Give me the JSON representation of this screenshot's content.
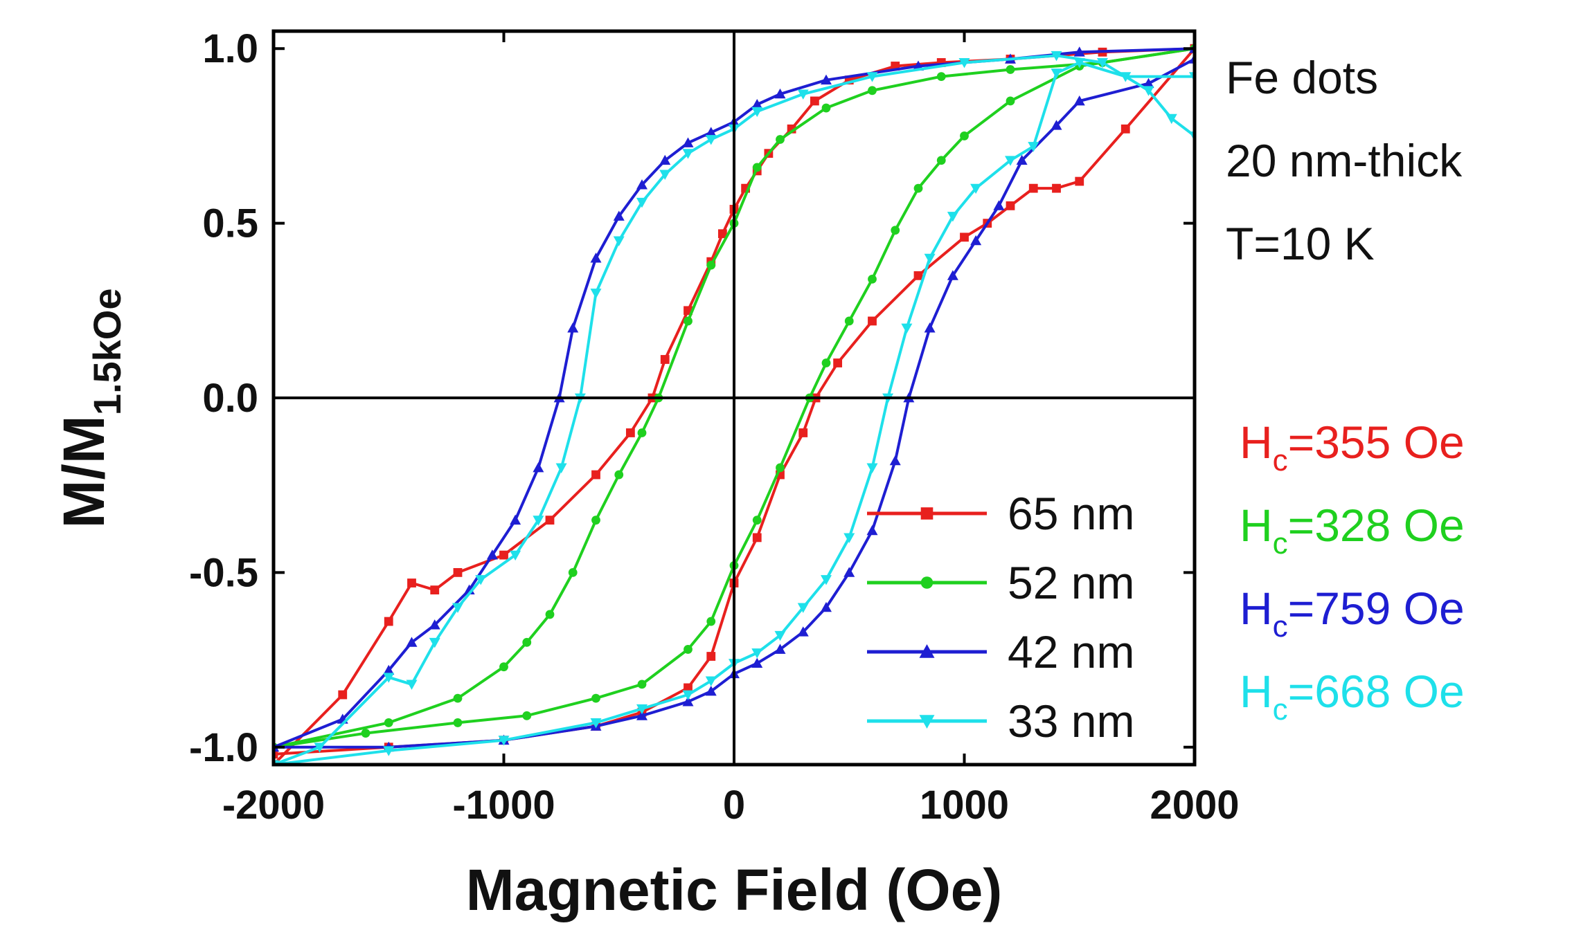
{
  "chart_data": {
    "type": "line",
    "xlabel": "Magnetic Field (Oe)",
    "ylabel_main": "M/M",
    "ylabel_sub": "1.5kOe",
    "xlim": [
      -2000,
      2000
    ],
    "ylim": [
      -1.05,
      1.05
    ],
    "xticks": [
      -2000,
      -1000,
      0,
      1000,
      2000
    ],
    "xtick_labels": [
      "-2000",
      "-1000",
      "0",
      "1000",
      "2000"
    ],
    "yticks": [
      -1.0,
      -0.5,
      0.0,
      0.5,
      1.0
    ],
    "ytick_labels": [
      "-1.0",
      "-0.5",
      "0.0",
      "0.5",
      "1.0"
    ],
    "zero_lines": true,
    "legend_position": "lower-right inside",
    "annotations": [
      "Fe dots",
      "20 nm-thick",
      "T=10 K"
    ],
    "series": [
      {
        "name": "65 nm",
        "color": "#e8201e",
        "marker": "square",
        "hc_label": "H",
        "hc_sub": "c",
        "hc_value": "=355 Oe",
        "descending": [
          [
            2000,
            1.0
          ],
          [
            1600,
            0.99
          ],
          [
            1200,
            0.97
          ],
          [
            900,
            0.96
          ],
          [
            700,
            0.95
          ],
          [
            500,
            0.91
          ],
          [
            350,
            0.85
          ],
          [
            250,
            0.77
          ],
          [
            150,
            0.7
          ],
          [
            100,
            0.65
          ],
          [
            50,
            0.6
          ],
          [
            0,
            0.54
          ],
          [
            -50,
            0.47
          ],
          [
            -100,
            0.39
          ],
          [
            -200,
            0.25
          ],
          [
            -300,
            0.11
          ],
          [
            -355,
            0.0
          ],
          [
            -450,
            -0.1
          ],
          [
            -600,
            -0.22
          ],
          [
            -800,
            -0.35
          ],
          [
            -1000,
            -0.45
          ],
          [
            -1200,
            -0.5
          ],
          [
            -1300,
            -0.55
          ],
          [
            -1400,
            -0.53
          ],
          [
            -1500,
            -0.64
          ],
          [
            -1700,
            -0.85
          ],
          [
            -2000,
            -1.05
          ]
        ],
        "ascending": [
          [
            -2000,
            -1.02
          ],
          [
            -1500,
            -1.0
          ],
          [
            -1000,
            -0.98
          ],
          [
            -600,
            -0.94
          ],
          [
            -400,
            -0.9
          ],
          [
            -200,
            -0.83
          ],
          [
            -100,
            -0.74
          ],
          [
            0,
            -0.53
          ],
          [
            100,
            -0.4
          ],
          [
            200,
            -0.22
          ],
          [
            300,
            -0.1
          ],
          [
            355,
            0.0
          ],
          [
            450,
            0.1
          ],
          [
            600,
            0.22
          ],
          [
            800,
            0.35
          ],
          [
            1000,
            0.46
          ],
          [
            1100,
            0.5
          ],
          [
            1200,
            0.55
          ],
          [
            1300,
            0.6
          ],
          [
            1400,
            0.6
          ],
          [
            1500,
            0.62
          ],
          [
            1700,
            0.77
          ],
          [
            2000,
            1.0
          ]
        ]
      },
      {
        "name": "52 nm",
        "color": "#1fd01f",
        "marker": "circle",
        "hc_label": "H",
        "hc_sub": "c",
        "hc_value": "=328 Oe",
        "descending": [
          [
            2000,
            1.0
          ],
          [
            1600,
            0.96
          ],
          [
            1200,
            0.94
          ],
          [
            900,
            0.92
          ],
          [
            600,
            0.88
          ],
          [
            400,
            0.83
          ],
          [
            200,
            0.74
          ],
          [
            100,
            0.66
          ],
          [
            0,
            0.5
          ],
          [
            -100,
            0.38
          ],
          [
            -200,
            0.22
          ],
          [
            -328,
            0.0
          ],
          [
            -400,
            -0.1
          ],
          [
            -500,
            -0.22
          ],
          [
            -600,
            -0.35
          ],
          [
            -700,
            -0.5
          ],
          [
            -800,
            -0.62
          ],
          [
            -900,
            -0.7
          ],
          [
            -1000,
            -0.77
          ],
          [
            -1200,
            -0.86
          ],
          [
            -1500,
            -0.93
          ],
          [
            -2000,
            -1.0
          ]
        ],
        "ascending": [
          [
            -2000,
            -1.0
          ],
          [
            -1600,
            -0.96
          ],
          [
            -1200,
            -0.93
          ],
          [
            -900,
            -0.91
          ],
          [
            -600,
            -0.86
          ],
          [
            -400,
            -0.82
          ],
          [
            -200,
            -0.72
          ],
          [
            -100,
            -0.64
          ],
          [
            0,
            -0.48
          ],
          [
            100,
            -0.35
          ],
          [
            200,
            -0.2
          ],
          [
            328,
            0.0
          ],
          [
            400,
            0.1
          ],
          [
            500,
            0.22
          ],
          [
            600,
            0.34
          ],
          [
            700,
            0.48
          ],
          [
            800,
            0.6
          ],
          [
            900,
            0.68
          ],
          [
            1000,
            0.75
          ],
          [
            1200,
            0.85
          ],
          [
            1500,
            0.95
          ],
          [
            2000,
            1.0
          ]
        ]
      },
      {
        "name": "42 nm",
        "color": "#1e1ed2",
        "marker": "triangle-up",
        "hc_label": "H",
        "hc_sub": "c",
        "hc_value": "=759 Oe",
        "descending": [
          [
            2000,
            1.0
          ],
          [
            1500,
            0.99
          ],
          [
            1200,
            0.97
          ],
          [
            800,
            0.95
          ],
          [
            400,
            0.91
          ],
          [
            200,
            0.87
          ],
          [
            100,
            0.84
          ],
          [
            0,
            0.79
          ],
          [
            -100,
            0.76
          ],
          [
            -200,
            0.73
          ],
          [
            -300,
            0.68
          ],
          [
            -400,
            0.61
          ],
          [
            -500,
            0.52
          ],
          [
            -600,
            0.4
          ],
          [
            -700,
            0.2
          ],
          [
            -759,
            0.0
          ],
          [
            -850,
            -0.2
          ],
          [
            -950,
            -0.35
          ],
          [
            -1050,
            -0.45
          ],
          [
            -1150,
            -0.55
          ],
          [
            -1300,
            -0.65
          ],
          [
            -1400,
            -0.7
          ],
          [
            -1500,
            -0.78
          ],
          [
            -1700,
            -0.92
          ],
          [
            -2000,
            -1.0
          ]
        ],
        "ascending": [
          [
            -2000,
            -1.0
          ],
          [
            -1500,
            -1.0
          ],
          [
            -1000,
            -0.98
          ],
          [
            -600,
            -0.94
          ],
          [
            -400,
            -0.91
          ],
          [
            -200,
            -0.87
          ],
          [
            -100,
            -0.84
          ],
          [
            0,
            -0.79
          ],
          [
            100,
            -0.76
          ],
          [
            200,
            -0.72
          ],
          [
            300,
            -0.67
          ],
          [
            400,
            -0.6
          ],
          [
            500,
            -0.5
          ],
          [
            600,
            -0.38
          ],
          [
            700,
            -0.18
          ],
          [
            759,
            0.0
          ],
          [
            850,
            0.2
          ],
          [
            950,
            0.35
          ],
          [
            1050,
            0.45
          ],
          [
            1150,
            0.55
          ],
          [
            1250,
            0.68
          ],
          [
            1400,
            0.78
          ],
          [
            1500,
            0.85
          ],
          [
            1800,
            0.9
          ],
          [
            2000,
            0.97
          ]
        ]
      },
      {
        "name": "33 nm",
        "color": "#1ee0ea",
        "marker": "triangle-down",
        "hc_label": "H",
        "hc_sub": "c",
        "hc_value": "=668 Oe",
        "descending": [
          [
            2000,
            0.75
          ],
          [
            1900,
            0.8
          ],
          [
            1800,
            0.88
          ],
          [
            1600,
            0.96
          ],
          [
            1400,
            0.98
          ],
          [
            1000,
            0.96
          ],
          [
            600,
            0.92
          ],
          [
            300,
            0.87
          ],
          [
            100,
            0.82
          ],
          [
            0,
            0.77
          ],
          [
            -100,
            0.74
          ],
          [
            -200,
            0.7
          ],
          [
            -300,
            0.64
          ],
          [
            -400,
            0.56
          ],
          [
            -500,
            0.45
          ],
          [
            -600,
            0.3
          ],
          [
            -668,
            0.0
          ],
          [
            -750,
            -0.2
          ],
          [
            -850,
            -0.35
          ],
          [
            -950,
            -0.45
          ],
          [
            -1100,
            -0.52
          ],
          [
            -1200,
            -0.6
          ],
          [
            -1300,
            -0.7
          ],
          [
            -1400,
            -0.82
          ],
          [
            -1500,
            -0.8
          ],
          [
            -1800,
            -1.0
          ],
          [
            -2000,
            -1.05
          ]
        ],
        "ascending": [
          [
            -2000,
            -1.05
          ],
          [
            -1500,
            -1.01
          ],
          [
            -1000,
            -0.98
          ],
          [
            -600,
            -0.93
          ],
          [
            -400,
            -0.89
          ],
          [
            -200,
            -0.85
          ],
          [
            -100,
            -0.81
          ],
          [
            0,
            -0.76
          ],
          [
            100,
            -0.73
          ],
          [
            200,
            -0.68
          ],
          [
            300,
            -0.6
          ],
          [
            400,
            -0.52
          ],
          [
            500,
            -0.4
          ],
          [
            600,
            -0.2
          ],
          [
            668,
            0.0
          ],
          [
            750,
            0.2
          ],
          [
            850,
            0.4
          ],
          [
            950,
            0.52
          ],
          [
            1050,
            0.6
          ],
          [
            1200,
            0.68
          ],
          [
            1300,
            0.72
          ],
          [
            1400,
            0.93
          ],
          [
            1500,
            0.96
          ],
          [
            1700,
            0.92
          ],
          [
            2000,
            0.92
          ]
        ]
      }
    ]
  }
}
